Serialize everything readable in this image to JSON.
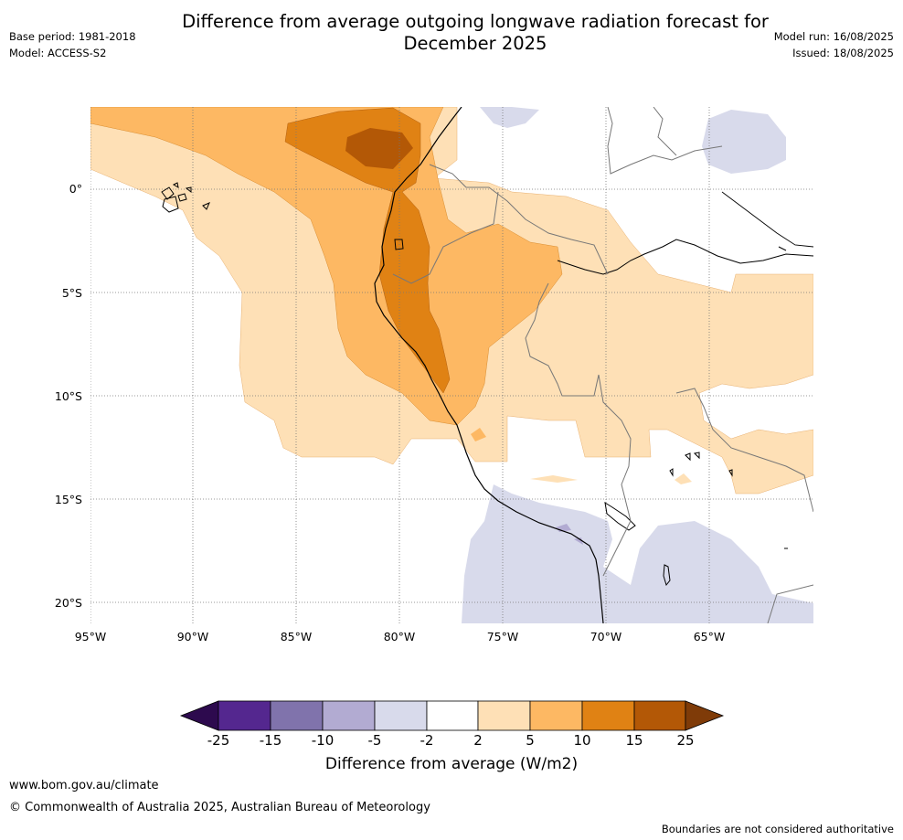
{
  "title": "Difference from average outgoing longwave radiation forecast for December 2025",
  "base_period": "Base period: 1981-2018",
  "model": "Model: ACCESS-S2",
  "model_run": "Model run: 16/08/2025",
  "issued": "Issued: 18/08/2025",
  "map": {
    "lat_labels": [
      "0°",
      "5°S",
      "10°S",
      "15°S",
      "20°S"
    ],
    "lon_labels": [
      "95°W",
      "90°W",
      "85°W",
      "80°W",
      "75°W",
      "70°W",
      "65°W"
    ]
  },
  "colorbar": {
    "title": "Difference from average (W/m2)",
    "ticks": [
      "-25",
      "-15",
      "-10",
      "-5",
      "-2",
      "2",
      "5",
      "10",
      "15",
      "25"
    ],
    "colors": [
      "#2d0a4e",
      "#54278f",
      "#8073ac",
      "#b2abd2",
      "#d8daeb",
      "#ffffff",
      "#fee0b6",
      "#fdb863",
      "#e08214",
      "#b35806",
      "#7f3b08"
    ]
  },
  "footer": {
    "url": "www.bom.gov.au/climate",
    "copyright": "© Commonwealth of Australia 2025, Australian Bureau of Meteorology",
    "disclaimer": "Boundaries are not considered authoritative"
  }
}
